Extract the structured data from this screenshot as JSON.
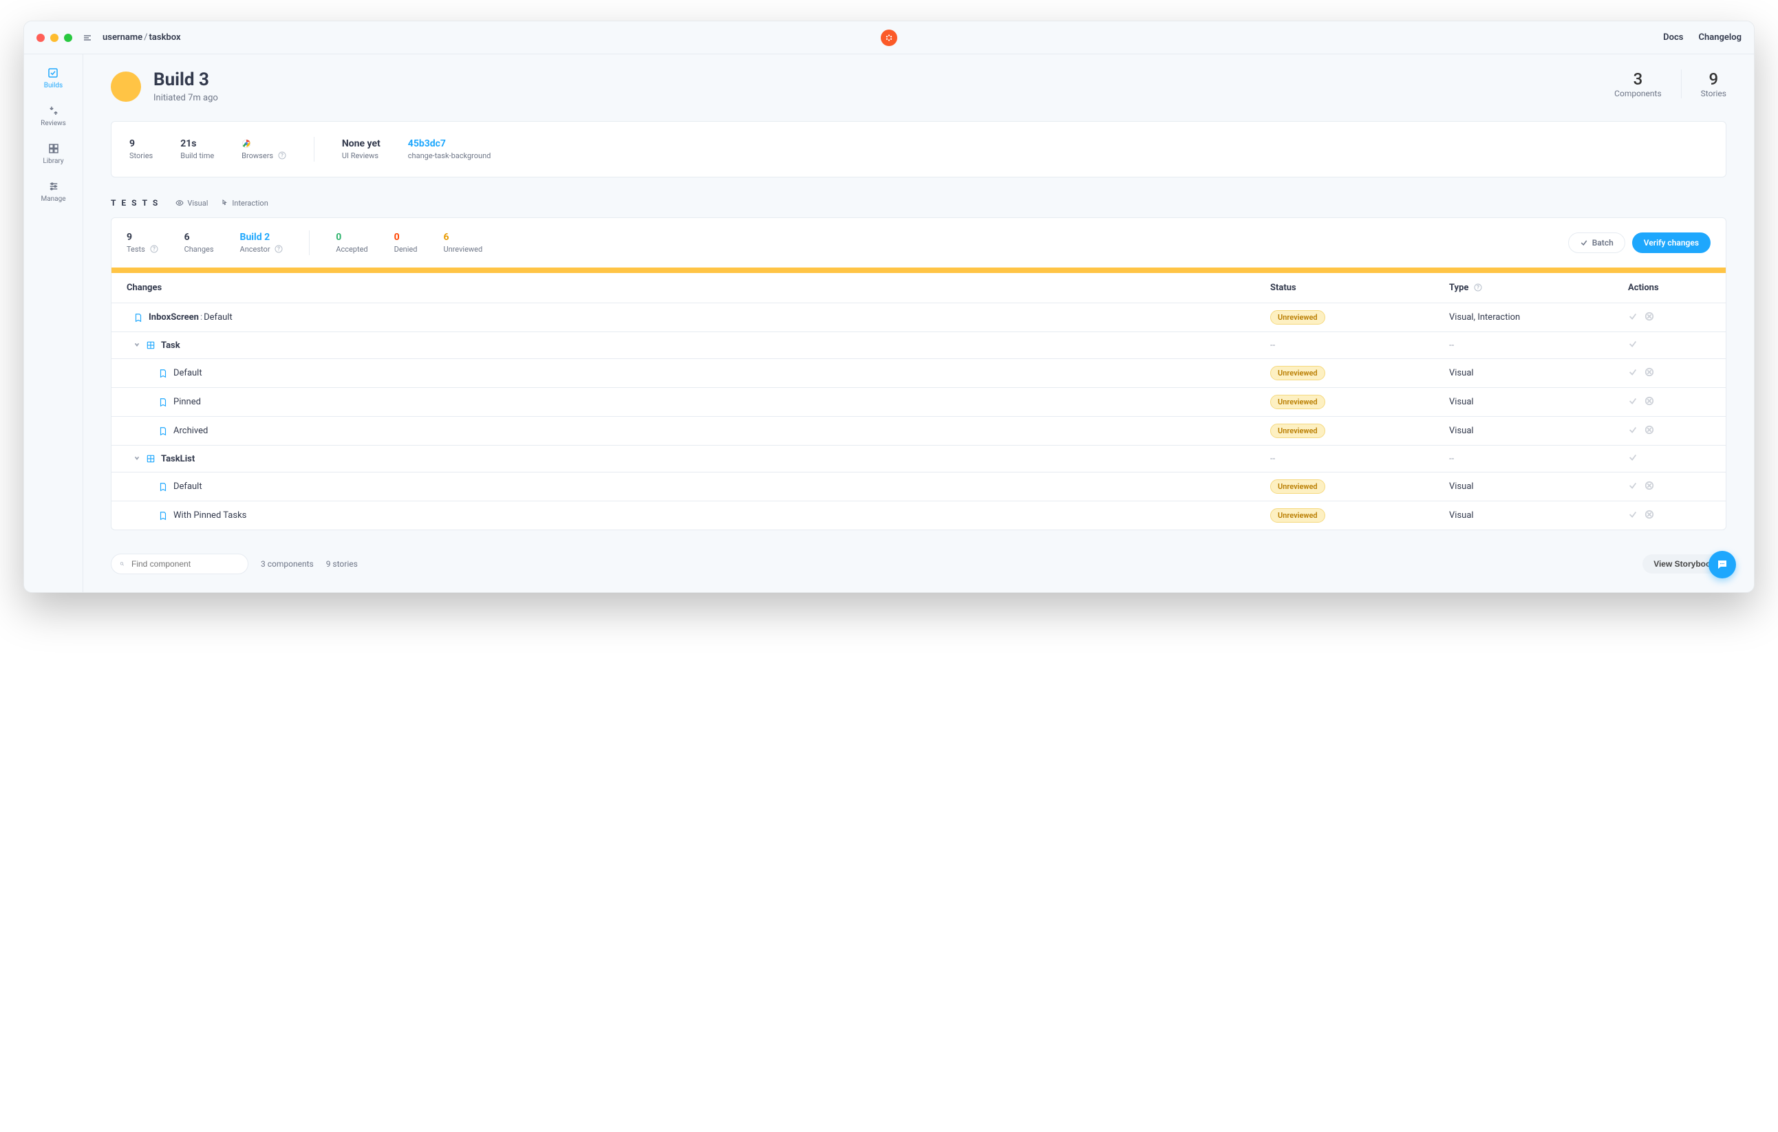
{
  "colors": {
    "accent_blue": "#1ea7fd",
    "amber": "#ffc445",
    "amber_chip_bg": "#fdf0c2",
    "panel": "#ffffff",
    "page_bg": "#f6f9fc",
    "muted": "#6e7687"
  },
  "topbar": {
    "breadcrumb_user": "username",
    "breadcrumb_repo": "taskbox",
    "nav_docs": "Docs",
    "nav_changelog": "Changelog"
  },
  "sidebar": {
    "builds": "Builds",
    "reviews": "Reviews",
    "library": "Library",
    "manage": "Manage"
  },
  "header": {
    "title": "Build 3",
    "subtitle": "Initiated 7m ago",
    "components_count": "3",
    "components_label": "Components",
    "stories_count": "9",
    "stories_label": "Stories"
  },
  "stats": {
    "stories_num": "9",
    "stories_label": "Stories",
    "buildtime_num": "21s",
    "buildtime_label": "Build time",
    "browsers_label": "Browsers",
    "uireviews_num": "None yet",
    "uireviews_label": "UI Reviews",
    "commit_hash": "45b3dc7",
    "branch_name": "change-task-background"
  },
  "filters": {
    "tests_title": "TESTS",
    "visual": "Visual",
    "interaction": "Interaction"
  },
  "testsbar": {
    "tests_num": "9",
    "tests_label": "Tests",
    "changes_num": "6",
    "changes_label": "Changes",
    "ancestor_num": "Build 2",
    "ancestor_label": "Ancestor",
    "accepted_num": "0",
    "accepted_label": "Accepted",
    "denied_num": "0",
    "denied_label": "Denied",
    "unreviewed_num": "6",
    "unreviewed_label": "Unreviewed",
    "batch_label": "Batch",
    "verify_label": "Verify changes"
  },
  "table": {
    "col_changes": "Changes",
    "col_status": "Status",
    "col_type": "Type",
    "col_actions": "Actions",
    "rows": [
      {
        "kind": "story",
        "indent": 1,
        "main": "InboxScreen",
        "sub": "Default",
        "status": "Unreviewed",
        "type": "Visual, Interaction",
        "actions_full": true
      },
      {
        "kind": "component",
        "indent": 1,
        "main": "Task",
        "status": "--",
        "type": "--",
        "actions_full": false,
        "expandable": true
      },
      {
        "kind": "story",
        "indent": 2,
        "main": "Default",
        "status": "Unreviewed",
        "type": "Visual",
        "actions_full": true
      },
      {
        "kind": "story",
        "indent": 2,
        "main": "Pinned",
        "status": "Unreviewed",
        "type": "Visual",
        "actions_full": true
      },
      {
        "kind": "story",
        "indent": 2,
        "main": "Archived",
        "status": "Unreviewed",
        "type": "Visual",
        "actions_full": true
      },
      {
        "kind": "component",
        "indent": 1,
        "main": "TaskList",
        "status": "--",
        "type": "--",
        "actions_full": false,
        "expandable": true
      },
      {
        "kind": "story",
        "indent": 2,
        "main": "Default",
        "status": "Unreviewed",
        "type": "Visual",
        "actions_full": true
      },
      {
        "kind": "story",
        "indent": 2,
        "main": "With Pinned Tasks",
        "status": "Unreviewed",
        "type": "Visual",
        "actions_full": true
      }
    ]
  },
  "footer": {
    "search_placeholder": "Find component",
    "meta_components": "3 components",
    "meta_stories": "9 stories",
    "view_storybook": "View Storybook"
  }
}
